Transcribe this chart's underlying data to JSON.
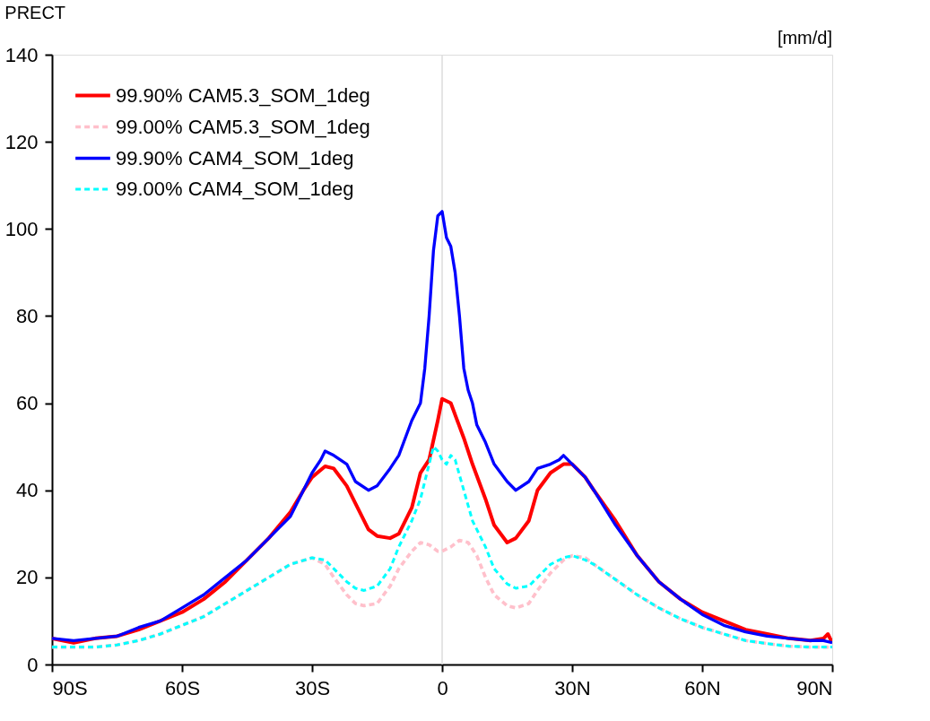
{
  "chart_data": {
    "type": "line",
    "title": "PRECT",
    "annotations": [
      "[mm/d]"
    ],
    "xlim": [
      -90,
      90
    ],
    "xticks": [
      {
        "value": -90,
        "label": "90S"
      },
      {
        "value": -60,
        "label": "60S"
      },
      {
        "value": -30,
        "label": "30S"
      },
      0,
      {
        "value": 30,
        "label": "30N"
      },
      {
        "value": 60,
        "label": "60N"
      },
      {
        "value": 90,
        "label": "90N"
      }
    ],
    "ylim": [
      0,
      140
    ],
    "yticks": [
      0,
      20,
      40,
      60,
      80,
      100,
      120,
      140
    ],
    "grid": false,
    "legend": "top left",
    "ref_lines": [
      {
        "axis": "x",
        "value": 0,
        "color": "#dddddd"
      }
    ],
    "series": [
      {
        "name": "99.90%  CAM5.3_SOM_1deg",
        "color": "#ff0000",
        "line_style": "solid",
        "x": [
          -90,
          -85,
          -80,
          -75,
          -70,
          -65,
          -60,
          -55,
          -50,
          -45,
          -40,
          -35,
          -32,
          -30,
          -27,
          -25,
          -22,
          -20,
          -17,
          -15,
          -12,
          -10,
          -7,
          -5,
          -3,
          -1,
          0,
          2,
          5,
          7,
          10,
          12,
          15,
          17,
          20,
          22,
          25,
          28,
          30,
          33,
          35,
          40,
          45,
          50,
          55,
          60,
          65,
          70,
          75,
          80,
          85,
          88,
          89,
          90
        ],
        "values": [
          6,
          5,
          6,
          6.5,
          8,
          10,
          12,
          15,
          19,
          24,
          29,
          35,
          40,
          43,
          45.5,
          45,
          41,
          37,
          31,
          29.5,
          29,
          30,
          36,
          44,
          47,
          56,
          61,
          60,
          52,
          46,
          38,
          32,
          28,
          29,
          33,
          40,
          44,
          46,
          46,
          43,
          40,
          33,
          25,
          19,
          15,
          12,
          10,
          8,
          7,
          6,
          5.5,
          6,
          7,
          5
        ]
      },
      {
        "name": "99.00%  CAM5.3_SOM_1deg",
        "color": "#ffc0cb",
        "line_style": "dashed",
        "x": [
          -90,
          -85,
          -80,
          -75,
          -70,
          -65,
          -60,
          -55,
          -50,
          -45,
          -40,
          -35,
          -30,
          -27,
          -25,
          -22,
          -20,
          -18,
          -15,
          -12,
          -10,
          -7,
          -5,
          -3,
          -1,
          0,
          2,
          4,
          6,
          8,
          10,
          12,
          15,
          17,
          20,
          22,
          25,
          28,
          30,
          33,
          35,
          40,
          45,
          50,
          55,
          60,
          65,
          70,
          75,
          80,
          85,
          90
        ],
        "values": [
          4,
          4,
          4,
          4.5,
          5.5,
          7,
          9,
          11,
          14,
          17,
          20,
          23,
          24.5,
          23,
          20,
          16,
          14,
          13.5,
          14,
          18,
          22,
          26,
          28,
          27.5,
          26,
          26,
          27,
          28.5,
          28,
          25,
          20,
          16,
          13.5,
          13,
          14,
          17,
          21,
          24,
          25,
          24.5,
          23,
          19.5,
          16,
          13,
          10.5,
          8.5,
          7,
          5.5,
          4.8,
          4.2,
          4,
          4
        ]
      },
      {
        "name": "99.90%  CAM4_SOM_1deg",
        "color": "#0000ff",
        "line_style": "solid",
        "x": [
          -90,
          -85,
          -80,
          -75,
          -70,
          -65,
          -60,
          -55,
          -50,
          -45,
          -40,
          -35,
          -32,
          -30,
          -28,
          -27,
          -25,
          -22,
          -20,
          -17,
          -15,
          -12,
          -10,
          -7,
          -5,
          -4,
          -3,
          -2,
          -1,
          0,
          1,
          2,
          3,
          4,
          5,
          6,
          7,
          8,
          10,
          12,
          15,
          17,
          20,
          22,
          25,
          27,
          28,
          30,
          33,
          35,
          40,
          45,
          50,
          55,
          60,
          65,
          70,
          75,
          80,
          85,
          88,
          90
        ],
        "values": [
          6,
          5.5,
          6,
          6.5,
          8.5,
          10,
          13,
          16,
          20,
          24,
          29,
          34,
          40,
          44,
          47,
          49,
          48,
          46,
          42,
          40,
          41,
          45,
          48,
          56,
          60,
          68,
          80,
          95,
          103,
          104,
          98,
          96,
          90,
          80,
          68,
          63,
          60,
          55,
          51,
          46,
          42,
          40,
          42,
          45,
          46,
          47,
          48,
          46,
          43,
          40,
          32,
          25,
          19,
          15,
          11.5,
          9,
          7.5,
          6.5,
          6,
          5.5,
          5.5,
          5
        ]
      },
      {
        "name": "99.00%  CAM4_SOM_1deg",
        "color": "#00ffff",
        "line_style": "dashed",
        "x": [
          -90,
          -85,
          -80,
          -75,
          -70,
          -65,
          -60,
          -55,
          -50,
          -45,
          -40,
          -35,
          -30,
          -27,
          -25,
          -22,
          -20,
          -18,
          -15,
          -12,
          -10,
          -7,
          -5,
          -3,
          -2,
          -1,
          0,
          1,
          2,
          3,
          5,
          7,
          10,
          12,
          15,
          17,
          20,
          22,
          25,
          28,
          30,
          33,
          35,
          40,
          45,
          50,
          55,
          60,
          65,
          70,
          75,
          80,
          85,
          90
        ],
        "values": [
          4,
          4,
          4,
          4.5,
          5.5,
          7,
          9,
          11,
          14,
          17,
          20,
          23,
          24.5,
          24,
          22,
          19,
          17.5,
          17,
          18,
          22,
          27,
          33,
          38,
          46,
          50,
          49,
          47,
          46,
          48,
          47,
          40,
          33,
          27,
          22,
          18.5,
          17.5,
          18,
          20,
          23,
          24.5,
          25,
          24,
          23,
          19.5,
          16,
          13,
          10.5,
          8.5,
          7,
          5.5,
          4.8,
          4.2,
          4,
          4
        ]
      }
    ]
  }
}
